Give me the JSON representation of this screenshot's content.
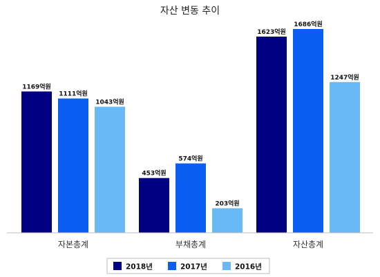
{
  "chart_data": {
    "type": "bar",
    "title": "자산 변동 추이",
    "categories": [
      "자본총계",
      "부채총계",
      "자산총계"
    ],
    "series": [
      {
        "name": "2018년",
        "color": "#000080",
        "values": [
          1169,
          453,
          1623
        ],
        "labels": [
          "1169억원",
          "453억원",
          "1623억원"
        ]
      },
      {
        "name": "2017년",
        "color": "#0a5ff2",
        "values": [
          1111,
          574,
          1686
        ],
        "labels": [
          "1111억원",
          "574억원",
          "1686억원"
        ]
      },
      {
        "name": "2016년",
        "color": "#6ab9f7",
        "values": [
          1043,
          203,
          1247
        ],
        "labels": [
          "1043억원",
          "203억원",
          "1247억원"
        ]
      }
    ],
    "ylim": [
      0,
      1800
    ],
    "grid": false,
    "legend_position": "bottom"
  }
}
